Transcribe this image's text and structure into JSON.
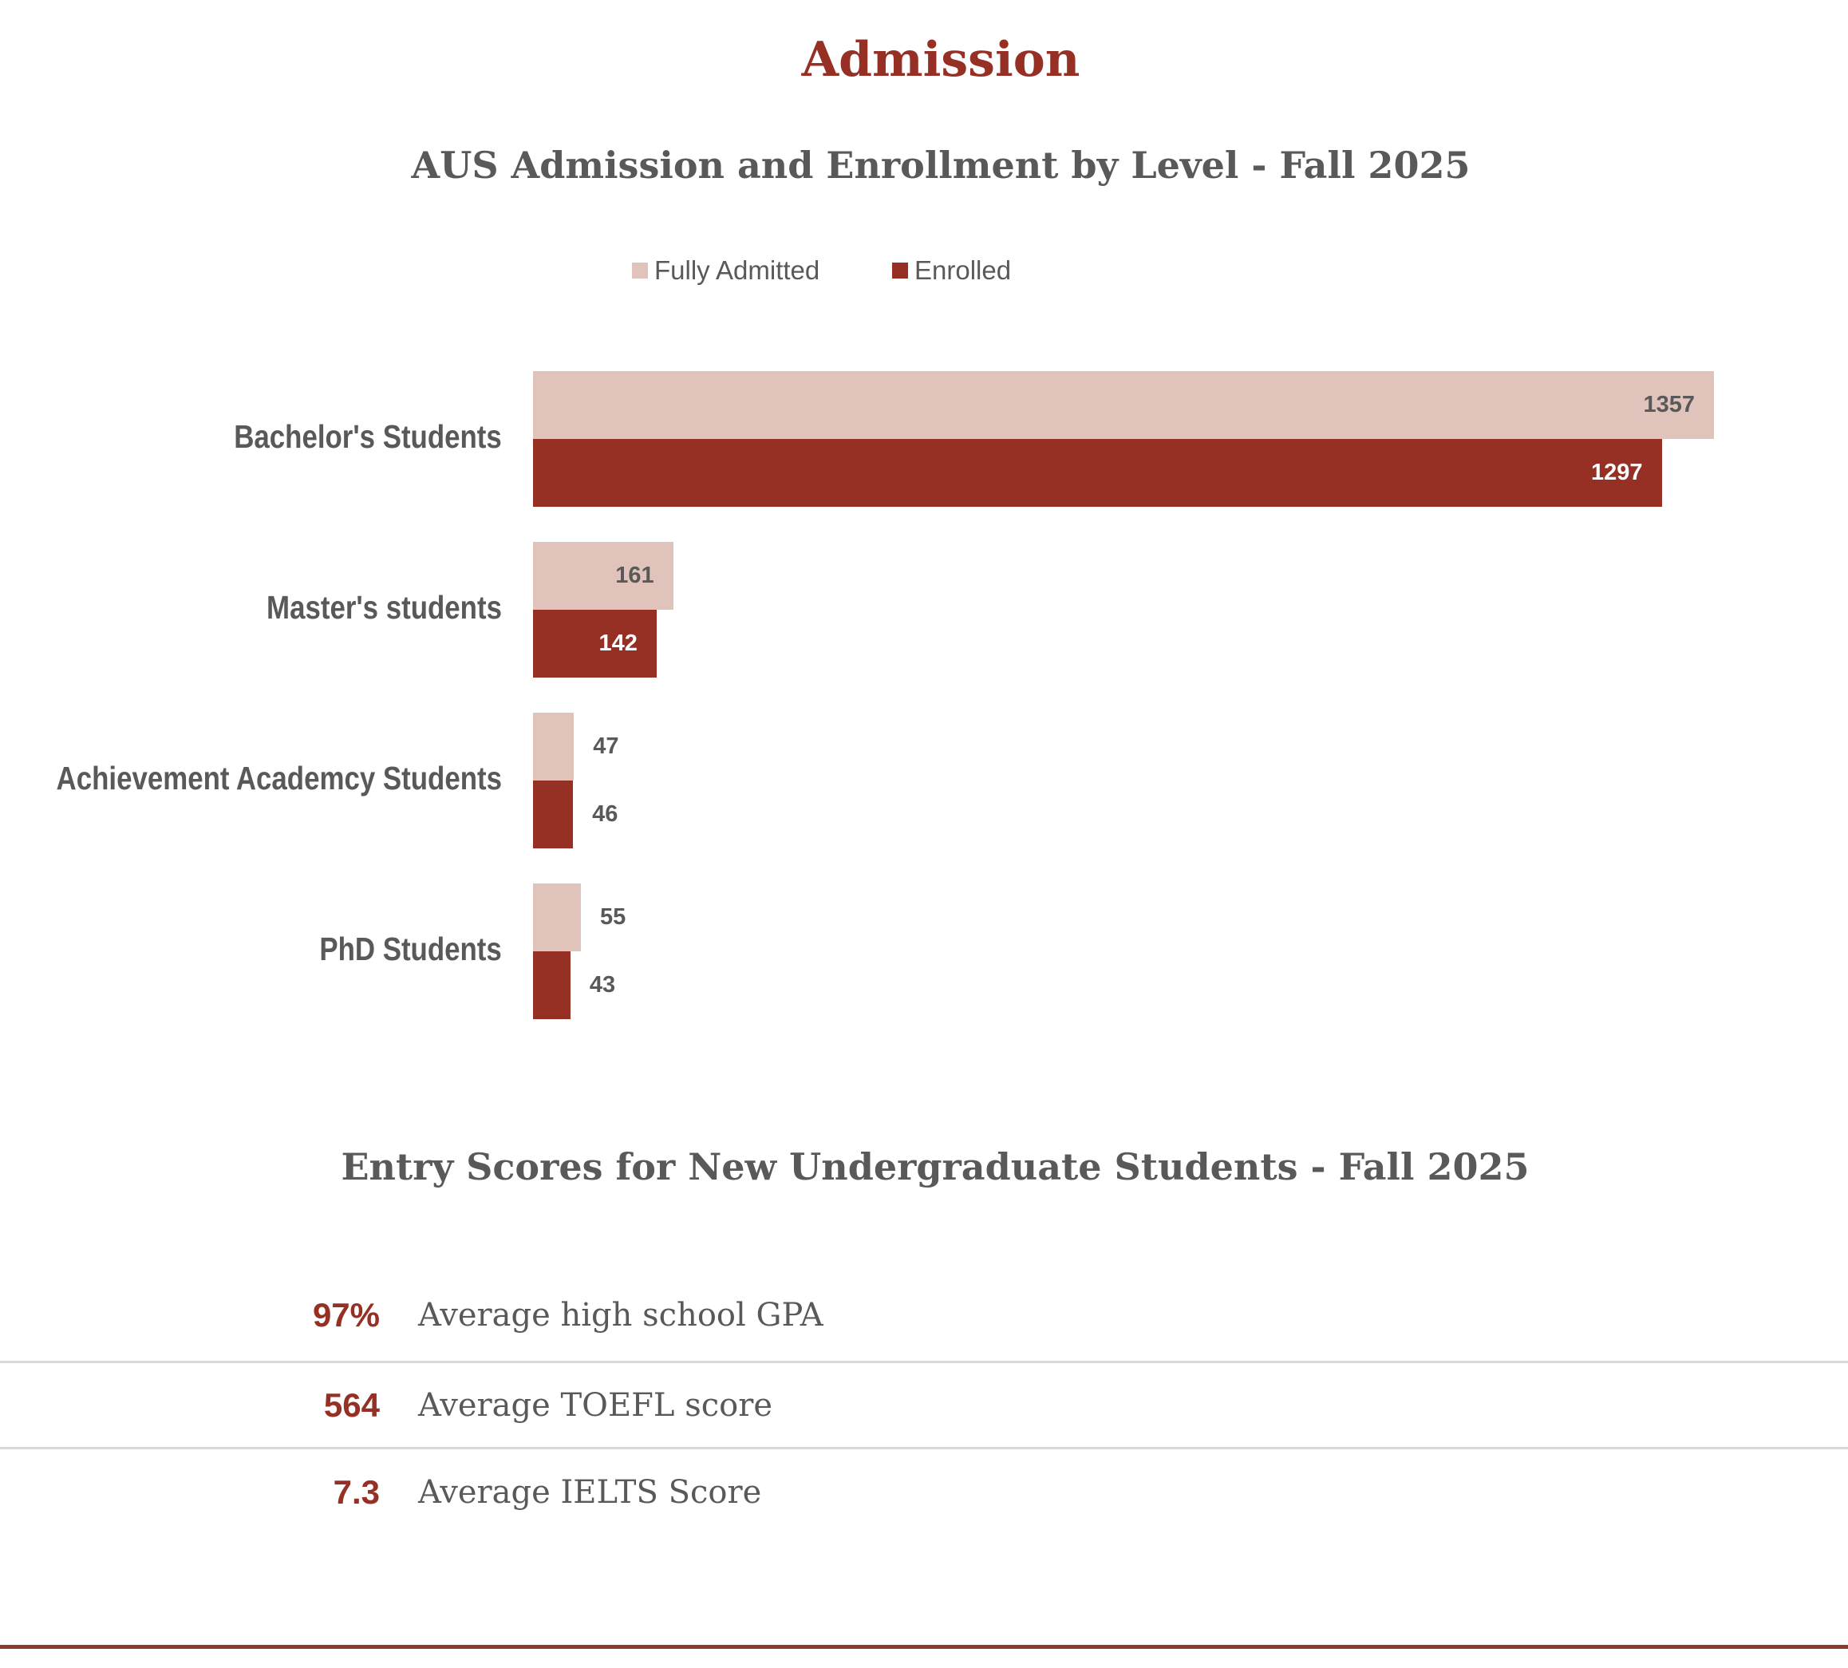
{
  "header": {
    "title": "Admission"
  },
  "chart_data": {
    "type": "bar",
    "orientation": "horizontal",
    "title": "AUS Admission and Enrollment by Level - Fall 2025",
    "categories": [
      "Bachelor's Students",
      "Master's students",
      "Achievement Academcy Students",
      "PhD Students"
    ],
    "series": [
      {
        "name": "Fully Admitted",
        "color": "#e0c3bb",
        "values": [
          1357,
          161,
          47,
          55
        ]
      },
      {
        "name": "Enrolled",
        "color": "#963025",
        "values": [
          1297,
          142,
          46,
          43
        ]
      }
    ],
    "legend_position": "top-center",
    "grid": false,
    "xlabel": "",
    "ylabel": ""
  },
  "scores": {
    "title": "Entry Scores for New Undergraduate Students - Fall 2025",
    "rows": [
      {
        "value": "97%",
        "label": "Average high school GPA"
      },
      {
        "value": "564",
        "label": "Average TOEFL score"
      },
      {
        "value": "7.3",
        "label": "Average IELTS Score"
      }
    ]
  }
}
